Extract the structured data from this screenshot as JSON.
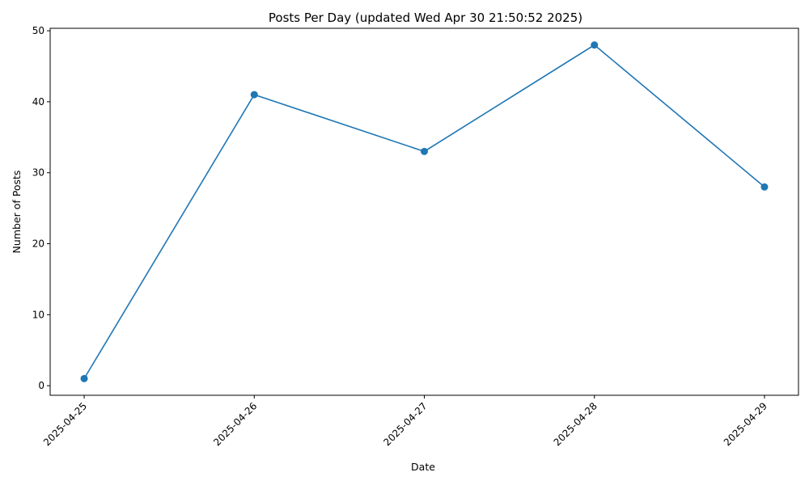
{
  "chart_data": {
    "type": "line",
    "title": "Posts Per Day (updated Wed Apr 30 21:50:52 2025)",
    "xlabel": "Date",
    "ylabel": "Number of Posts",
    "categories": [
      "2025-04-25",
      "2025-04-26",
      "2025-04-27",
      "2025-04-28",
      "2025-04-29"
    ],
    "series": [
      {
        "values": [
          1,
          41,
          33,
          48,
          28
        ],
        "color": "#1f77b4",
        "marker": "circle"
      }
    ],
    "ylim": [
      -1.35,
      50.35
    ],
    "yticks": [
      0,
      10,
      20,
      30,
      40,
      50
    ],
    "grid": false,
    "legend": "none",
    "x_tick_rotation": 45
  }
}
